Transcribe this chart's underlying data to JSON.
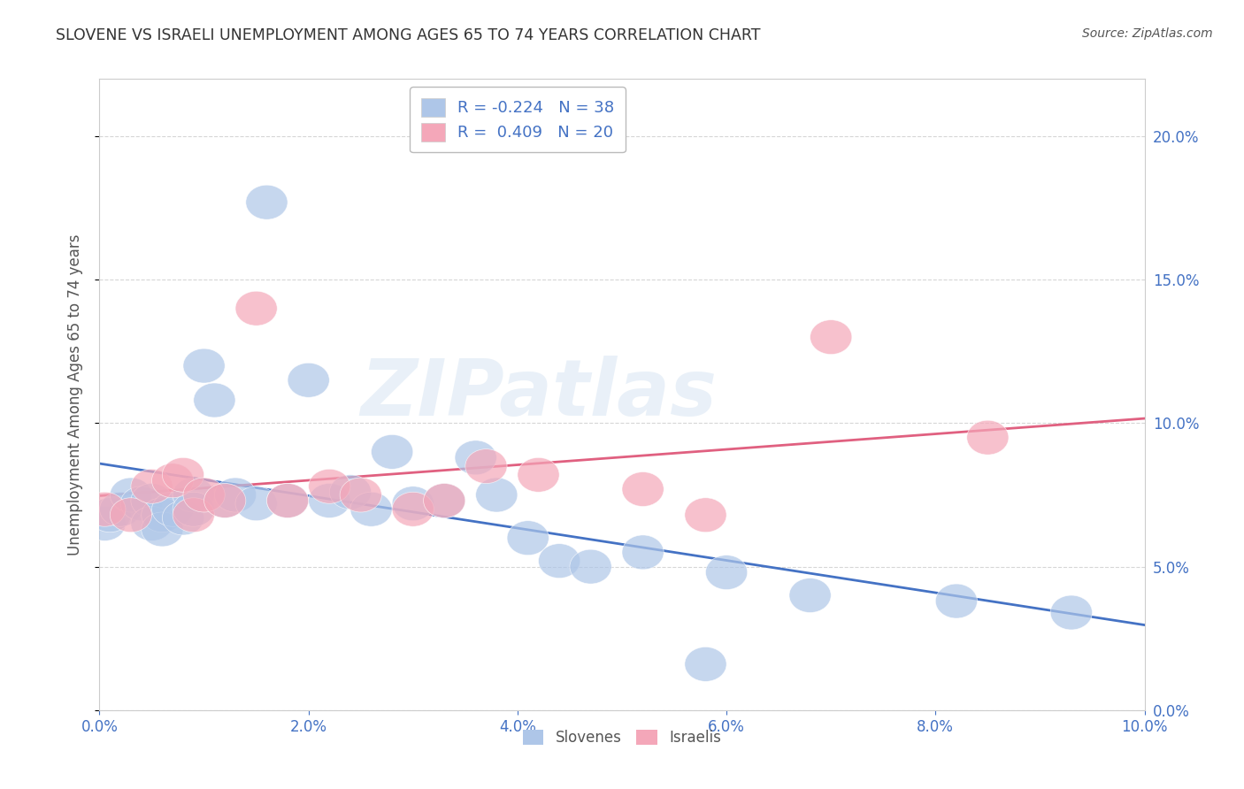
{
  "title": "SLOVENE VS ISRAELI UNEMPLOYMENT AMONG AGES 65 TO 74 YEARS CORRELATION CHART",
  "source": "Source: ZipAtlas.com",
  "ylabel": "Unemployment Among Ages 65 to 74 years",
  "xlim": [
    0.0,
    0.1
  ],
  "ylim": [
    0.0,
    0.22
  ],
  "slovene_x": [
    0.0005,
    0.001,
    0.002,
    0.003,
    0.004,
    0.005,
    0.005,
    0.006,
    0.006,
    0.007,
    0.008,
    0.009,
    0.009,
    0.01,
    0.011,
    0.012,
    0.013,
    0.015,
    0.016,
    0.018,
    0.02,
    0.022,
    0.024,
    0.026,
    0.028,
    0.03,
    0.033,
    0.036,
    0.038,
    0.041,
    0.044,
    0.047,
    0.052,
    0.058,
    0.06,
    0.068,
    0.082,
    0.093
  ],
  "slovene_y": [
    0.065,
    0.068,
    0.07,
    0.075,
    0.072,
    0.073,
    0.065,
    0.068,
    0.063,
    0.07,
    0.067,
    0.075,
    0.07,
    0.12,
    0.108,
    0.073,
    0.075,
    0.072,
    0.177,
    0.073,
    0.115,
    0.073,
    0.076,
    0.07,
    0.09,
    0.072,
    0.073,
    0.088,
    0.075,
    0.06,
    0.052,
    0.05,
    0.055,
    0.016,
    0.048,
    0.04,
    0.038,
    0.034
  ],
  "israeli_x": [
    0.0005,
    0.003,
    0.005,
    0.007,
    0.008,
    0.009,
    0.01,
    0.012,
    0.015,
    0.018,
    0.022,
    0.025,
    0.03,
    0.033,
    0.037,
    0.042,
    0.052,
    0.058,
    0.07,
    0.085
  ],
  "israeli_y": [
    0.07,
    0.068,
    0.078,
    0.08,
    0.082,
    0.068,
    0.075,
    0.073,
    0.14,
    0.073,
    0.078,
    0.075,
    0.07,
    0.073,
    0.085,
    0.082,
    0.077,
    0.068,
    0.13,
    0.095
  ],
  "slovene_color": "#aec6e8",
  "israeli_color": "#f4a7b9",
  "slovene_line_color": "#4472c4",
  "israeli_line_color": "#e06080",
  "r_slovene": -0.224,
  "n_slovene": 38,
  "r_israeli": 0.409,
  "n_israeli": 20,
  "watermark_text": "ZIPatlas",
  "title_color": "#333333",
  "axis_label_color": "#555555",
  "tick_color": "#4472c4",
  "grid_color": "#cccccc",
  "background_color": "#ffffff"
}
